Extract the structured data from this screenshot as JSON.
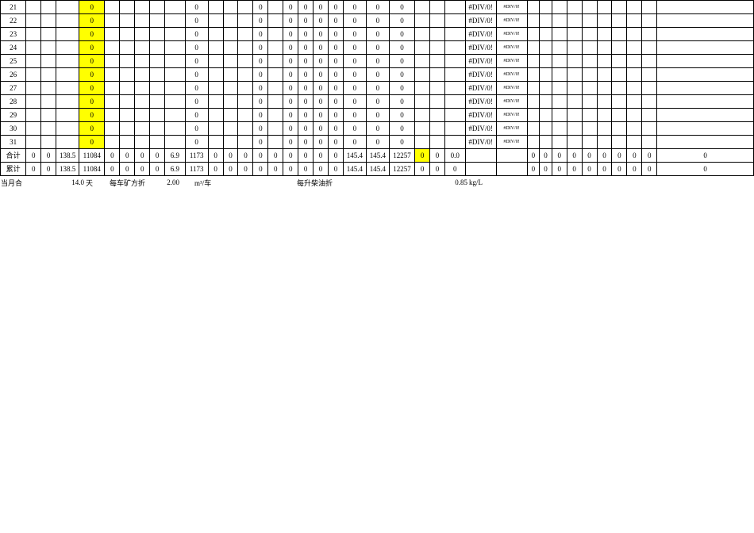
{
  "colors": {
    "highlight": "#ffff00",
    "border": "#000000",
    "background": "#ffffff",
    "text": "#000000"
  },
  "dayRow": {
    "c4": "0",
    "c10": "0",
    "c14": "0",
    "c16": "0",
    "c17": "0",
    "c18": "0",
    "c19": "0",
    "c20": "0",
    "c21": "0",
    "c22": "0",
    "c26": "#DIV/0!",
    "c27": "#DIV/0!"
  },
  "dayLabels": [
    "21",
    "22",
    "23",
    "24",
    "25",
    "26",
    "27",
    "28",
    "29",
    "30",
    "31"
  ],
  "sumRows": {
    "heji": {
      "label": "合计",
      "c1": "0",
      "c2": "0",
      "c3": "138.5",
      "c4": "11084",
      "c5": "0",
      "c6": "0",
      "c7": "0",
      "c8": "0",
      "c9": "6.9",
      "c10": "1173",
      "c11": "0",
      "c12": "0",
      "c13": "0",
      "c14": "0",
      "c15": "0",
      "c16": "0",
      "c17": "0",
      "c18": "0",
      "c19": "0",
      "c20": "145.4",
      "c21": "145.4",
      "c22": "12257",
      "c23": "0",
      "c24": "0",
      "c25": "0.0",
      "c26": "",
      "c27": "",
      "c28": "0",
      "c29": "0",
      "c30": "0",
      "c31": "0",
      "c32": "0",
      "c33": "0",
      "c34": "0",
      "c35": "0",
      "c36": "0",
      "c37": "0",
      "highlight23": true
    },
    "leiji": {
      "label": "累计",
      "c1": "0",
      "c2": "0",
      "c3": "138.5",
      "c4": "11084",
      "c5": "0",
      "c6": "0",
      "c7": "0",
      "c8": "0",
      "c9": "6.9",
      "c10": "1173",
      "c11": "0",
      "c12": "0",
      "c13": "0",
      "c14": "0",
      "c15": "0",
      "c16": "0",
      "c17": "0",
      "c18": "0",
      "c19": "0",
      "c20": "145.4",
      "c21": "145.4",
      "c22": "12257",
      "c23": "0",
      "c24": "0",
      "c25": "0",
      "c26": "",
      "c27": "",
      "c28": "0",
      "c29": "0",
      "c30": "0",
      "c31": "0",
      "c32": "0",
      "c33": "0",
      "c34": "0",
      "c35": "0",
      "c36": "0",
      "c37": "0",
      "highlight23": false
    }
  },
  "bottom": {
    "a_label": "当月合",
    "a_val": "14.0",
    "a_unit": "天",
    "b_label": "每车矿方折",
    "b_val": "2.00",
    "b_unit": "m³/车",
    "c_label": "每升柴油折",
    "c_val": "0.85",
    "c_unit": "kg/L"
  }
}
